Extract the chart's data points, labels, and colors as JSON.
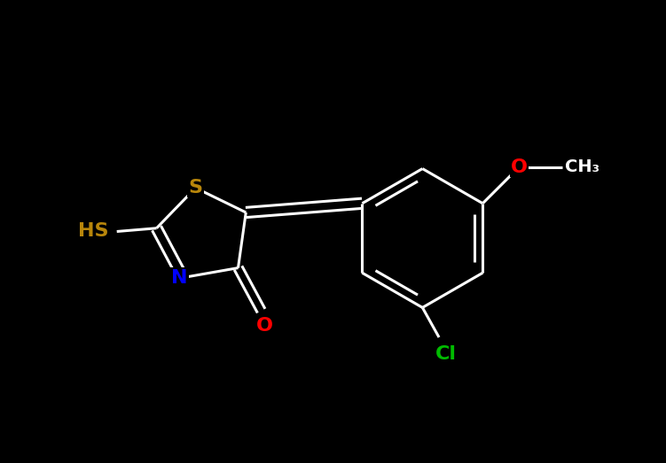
{
  "background_color": "#000000",
  "atom_colors": {
    "S": "#B8860B",
    "N": "#0000FF",
    "O": "#FF0000",
    "Cl": "#00BB00",
    "C": "#FFFFFF",
    "HS": "#B8860B"
  },
  "bond_color": "#FFFFFF",
  "bond_width": 2.2,
  "figsize": [
    7.51,
    5.23
  ],
  "dpi": 100,
  "font_size": 16
}
